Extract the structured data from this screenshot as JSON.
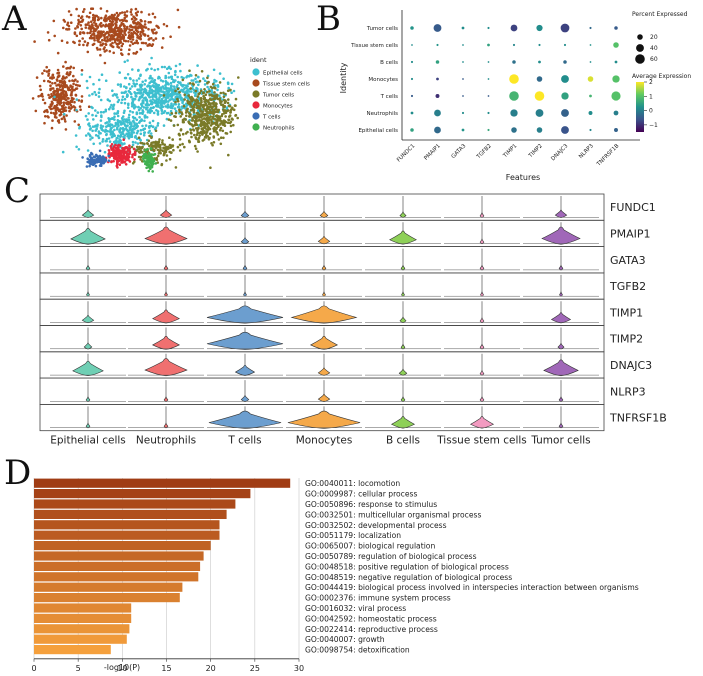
{
  "panel_labels": {
    "a": "A",
    "b": "B",
    "c": "C",
    "d": "D"
  },
  "colors": {
    "Epithelial cells": "#3dbfcf",
    "Tissue stem cells": "#a84a1e",
    "Tumor cells": "#7a7a28",
    "Monocytes": "#e8283c",
    "T cells": "#3a6db4",
    "Neutrophils": "#40b050"
  },
  "chart_data": [
    {
      "panel": "A",
      "type": "scatter",
      "title": "",
      "legend_title": "ident",
      "legend": [
        "Epithelial cells",
        "Tissue stem cells",
        "Tumor cells",
        "Monocytes",
        "T cells",
        "Neutrophils"
      ]
    },
    {
      "panel": "B",
      "type": "dotplot",
      "xlabel": "Features",
      "ylabel": "Identity",
      "features": [
        "FUNDC1",
        "PMAIP1",
        "GATA3",
        "TGFB2",
        "TIMP1",
        "TIMP2",
        "DNAJC3",
        "NLRP3",
        "TNFRSF1B"
      ],
      "identities": [
        "Tumor cells",
        "Tissue stem cells",
        "B cells",
        "Monocytes",
        "T cells",
        "Neutrophils",
        "Epithelial cells"
      ],
      "pct": [
        [
          8,
          40,
          5,
          3,
          30,
          25,
          50,
          3,
          8
        ],
        [
          2,
          3,
          2,
          5,
          3,
          3,
          3,
          2,
          20
        ],
        [
          3,
          8,
          2,
          2,
          8,
          5,
          8,
          2,
          5
        ],
        [
          3,
          5,
          2,
          2,
          60,
          20,
          40,
          20,
          35
        ],
        [
          3,
          10,
          2,
          2,
          60,
          60,
          35,
          5,
          55
        ],
        [
          5,
          30,
          3,
          3,
          35,
          40,
          40,
          10,
          15
        ],
        [
          8,
          30,
          5,
          3,
          20,
          20,
          40,
          3,
          10
        ]
      ],
      "avg": [
        [
          0.3,
          -0.5,
          0.2,
          0.2,
          -0.8,
          0.2,
          -0.8,
          -0.3,
          -0.5
        ],
        [
          0.2,
          0.3,
          0.2,
          0.5,
          0.1,
          0.2,
          0.2,
          0.3,
          1.0
        ],
        [
          0.2,
          0.5,
          0.2,
          0.2,
          -0.2,
          0.2,
          -0.3,
          0.2,
          0.2
        ],
        [
          0.2,
          -0.8,
          -0.5,
          0.2,
          2.0,
          -0.3,
          0.2,
          1.8,
          1.0
        ],
        [
          -0.5,
          -1.0,
          -0.5,
          -0.5,
          0.8,
          2.0,
          0.5,
          0.8,
          1.0
        ],
        [
          0.2,
          0.0,
          0.2,
          0.2,
          0.0,
          0.0,
          -0.4,
          0.2,
          0.0
        ],
        [
          0.5,
          -0.3,
          0.3,
          0.6,
          -0.2,
          0.0,
          -0.6,
          0.1,
          -0.4
        ]
      ],
      "size_legend_title": "Percent Expressed",
      "size_legend_values": [
        20,
        40,
        60
      ],
      "color_legend_title": "Average Expression",
      "color_ticks": [
        2,
        1,
        0,
        -1
      ],
      "color_range": [
        -1.5,
        2
      ]
    },
    {
      "panel": "C",
      "type": "violin",
      "genes": [
        "FUNDC1",
        "PMAIP1",
        "GATA3",
        "TGFB2",
        "TIMP1",
        "TIMP2",
        "DNAJC3",
        "NLRP3",
        "TNFRSF1B"
      ],
      "groups": [
        "Epithelial cells",
        "Neutrophils",
        "T cells",
        "Monocytes",
        "B cells",
        "Tissue stem cells",
        "Tumor cells"
      ],
      "group_colors": [
        "#6fcfb4",
        "#f07070",
        "#6c9ecf",
        "#f5a94a",
        "#8ed058",
        "#f29ac0",
        "#a067b8"
      ],
      "widths": [
        [
          0.15,
          0.15,
          0.1,
          0.1,
          0.08,
          0.05,
          0.15
        ],
        [
          0.45,
          0.55,
          0.1,
          0.15,
          0.35,
          0.05,
          0.5
        ],
        [
          0.05,
          0.05,
          0.05,
          0.05,
          0.05,
          0.05,
          0.05
        ],
        [
          0.04,
          0.04,
          0.04,
          0.04,
          0.04,
          0.04,
          0.04
        ],
        [
          0.15,
          0.35,
          1.0,
          0.85,
          0.08,
          0.05,
          0.25
        ],
        [
          0.1,
          0.35,
          1.0,
          0.35,
          0.05,
          0.05,
          0.08
        ],
        [
          0.4,
          0.55,
          0.25,
          0.15,
          0.1,
          0.05,
          0.45
        ],
        [
          0.05,
          0.05,
          0.1,
          0.15,
          0.05,
          0.05,
          0.05
        ],
        [
          0.05,
          0.05,
          0.95,
          0.95,
          0.3,
          0.3,
          0.05
        ]
      ]
    },
    {
      "panel": "D",
      "type": "bar",
      "orientation": "horizontal",
      "xlabel": "-log10(P)",
      "xlim": [
        0,
        30
      ],
      "xticks": [
        0,
        5,
        10,
        15,
        20,
        25,
        30
      ],
      "categories": [
        "GO:0040011: locomotion",
        "GO:0009987: cellular process",
        "GO:0050896: response to stimulus",
        "GO:0032501: multicellular organismal process",
        "GO:0032502: developmental process",
        "GO:0051179: localization",
        "GO:0065007: biological regulation",
        "GO:0050789: regulation of biological process",
        "GO:0048518: positive regulation of biological process",
        "GO:0048519: negative regulation of biological process",
        "GO:0044419: biological process involved in interspecies interaction between organisms",
        "GO:0002376: immune system process",
        "GO:0016032: viral process",
        "GO:0042592: homeostatic process",
        "GO:0022414: reproductive process",
        "GO:0040007: growth",
        "GO:0098754: detoxification"
      ],
      "values": [
        29.0,
        24.5,
        22.8,
        21.8,
        21.0,
        21.0,
        20.0,
        19.2,
        18.8,
        18.6,
        16.8,
        16.5,
        11.0,
        11.0,
        10.8,
        10.5,
        8.7
      ]
    }
  ]
}
